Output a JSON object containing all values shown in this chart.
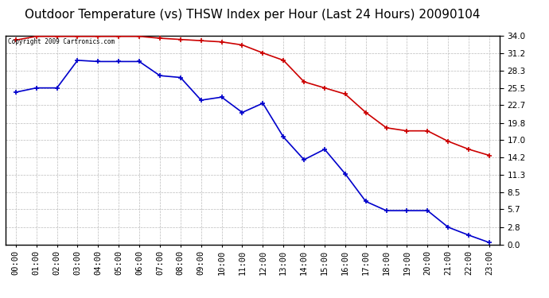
{
  "title": "Outdoor Temperature (vs) THSW Index per Hour (Last 24 Hours) 20090104",
  "copyright_text": "Copyright 2009 Cartronics.com",
  "hours": [
    "00:00",
    "01:00",
    "02:00",
    "03:00",
    "04:00",
    "05:00",
    "06:00",
    "07:00",
    "08:00",
    "09:00",
    "10:00",
    "11:00",
    "12:00",
    "13:00",
    "14:00",
    "15:00",
    "16:00",
    "17:00",
    "18:00",
    "19:00",
    "20:00",
    "21:00",
    "22:00",
    "23:00"
  ],
  "red_data": [
    33.3,
    33.9,
    33.9,
    33.9,
    33.9,
    33.9,
    33.9,
    33.6,
    33.4,
    33.2,
    33.0,
    32.5,
    31.2,
    30.0,
    26.5,
    25.5,
    24.5,
    21.5,
    19.0,
    18.5,
    18.5,
    16.8,
    15.5,
    14.5
  ],
  "blue_data": [
    24.8,
    25.5,
    25.5,
    30.0,
    29.8,
    29.8,
    29.8,
    27.5,
    27.2,
    23.5,
    24.0,
    21.5,
    23.0,
    17.5,
    13.8,
    15.5,
    11.5,
    7.0,
    5.5,
    5.5,
    5.5,
    2.8,
    1.5,
    0.3
  ],
  "ylim": [
    0.0,
    34.0
  ],
  "yticks": [
    0.0,
    2.8,
    5.7,
    8.5,
    11.3,
    14.2,
    17.0,
    19.8,
    22.7,
    25.5,
    28.3,
    31.2,
    34.0
  ],
  "red_color": "#cc0000",
  "blue_color": "#0000cc",
  "grid_color": "#bbbbbb",
  "background_color": "#ffffff",
  "title_fontsize": 11,
  "tick_fontsize": 7.5
}
